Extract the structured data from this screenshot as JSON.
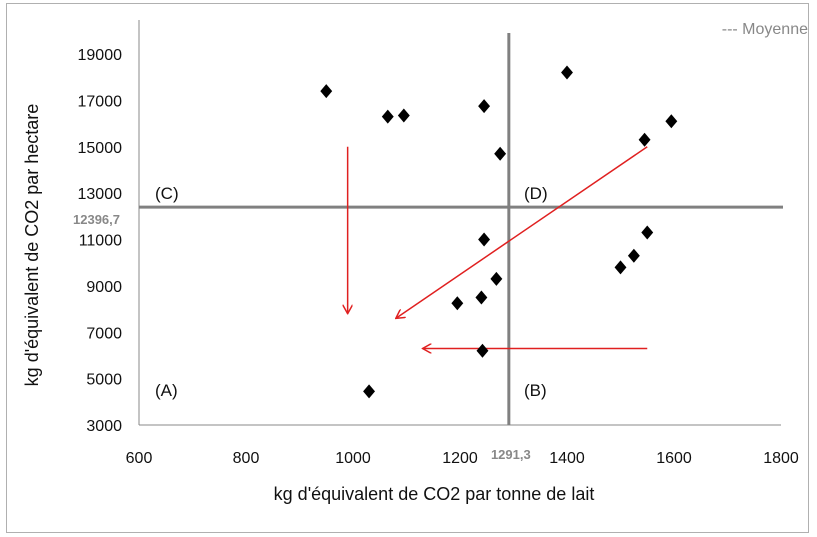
{
  "chart_data": {
    "type": "scatter",
    "title": "",
    "xlabel": "kg d'équivalent de CO2 par tonne de lait",
    "ylabel": "kg d'équivalent  de CO2 par hectare",
    "xlim": [
      600,
      1800
    ],
    "ylim": [
      3000,
      20000
    ],
    "xticks": [
      600,
      800,
      1000,
      1200,
      1400,
      1600,
      1800
    ],
    "yticks": [
      3000,
      5000,
      7000,
      9000,
      11000,
      13000,
      15000,
      17000,
      19000
    ],
    "grid": false,
    "legend_text": "--- Moyenne",
    "legend_position": "top-right",
    "mean_x": 1291.3,
    "mean_y": 12396.7,
    "mean_x_label": "1291,3",
    "mean_y_label": "12396,7",
    "marker": "diamond",
    "marker_color": "#000000",
    "mean_line_color": "#808080",
    "arrow_color": "#e02020",
    "quadrant_labels": [
      {
        "label": "(A)",
        "x": 640,
        "y": 4500
      },
      {
        "label": "(B)",
        "x": 1330,
        "y": 4500
      },
      {
        "label": "(C)",
        "x": 640,
        "y": 13000
      },
      {
        "label": "(D)",
        "x": 1330,
        "y": 13000
      }
    ],
    "arrows": [
      {
        "from": [
          990,
          15000
        ],
        "to": [
          990,
          7800
        ]
      },
      {
        "from": [
          1550,
          15000
        ],
        "to": [
          1080,
          7600
        ]
      },
      {
        "from": [
          1550,
          6300
        ],
        "to": [
          1130,
          6300
        ]
      }
    ],
    "points": [
      {
        "x": 950,
        "y": 17400
      },
      {
        "x": 1065,
        "y": 16300
      },
      {
        "x": 1095,
        "y": 16350
      },
      {
        "x": 1245,
        "y": 16750
      },
      {
        "x": 1400,
        "y": 18200
      },
      {
        "x": 1275,
        "y": 14700
      },
      {
        "x": 1545,
        "y": 15300
      },
      {
        "x": 1595,
        "y": 16100
      },
      {
        "x": 1245,
        "y": 11000
      },
      {
        "x": 1550,
        "y": 11300
      },
      {
        "x": 1525,
        "y": 10300
      },
      {
        "x": 1500,
        "y": 9800
      },
      {
        "x": 1268,
        "y": 9300
      },
      {
        "x": 1240,
        "y": 8500
      },
      {
        "x": 1195,
        "y": 8250
      },
      {
        "x": 1242,
        "y": 6200
      },
      {
        "x": 1030,
        "y": 4450
      }
    ]
  }
}
